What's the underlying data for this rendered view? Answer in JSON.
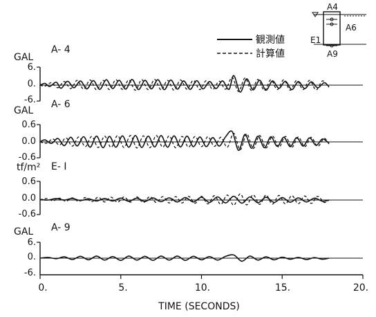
{
  "chart_data": {
    "type": "line",
    "xlabel": "TIME (SECONDS)",
    "xlim": [
      0,
      20
    ],
    "x_ticks": [
      "0.",
      "5.",
      "10.",
      "15.",
      "20."
    ],
    "legend": {
      "placement": "top-right",
      "items": [
        {
          "label": "観測値",
          "style": "solid"
        },
        {
          "label": "計算値",
          "style": "dashed"
        }
      ]
    },
    "inset": {
      "labels": {
        "a4": "A4",
        "a6": "A6",
        "e1": "E1",
        "a9": "A9"
      }
    },
    "panels": [
      {
        "id": "A-4",
        "unit": "GAL",
        "title": "A- 4",
        "ylim": [
          -6,
          6
        ],
        "y_ticks": [
          "6.",
          "0.",
          "-6."
        ],
        "observed": [
          [
            0,
            0.0
          ],
          [
            0.3,
            0.6
          ],
          [
            0.6,
            -0.5
          ],
          [
            1.0,
            1.0
          ],
          [
            1.3,
            -1.2
          ],
          [
            1.7,
            1.3
          ],
          [
            2.1,
            -1.0
          ],
          [
            2.5,
            1.4
          ],
          [
            2.9,
            -1.4
          ],
          [
            3.3,
            1.5
          ],
          [
            3.7,
            -1.6
          ],
          [
            4.1,
            1.8
          ],
          [
            4.5,
            -1.3
          ],
          [
            4.9,
            1.6
          ],
          [
            5.3,
            -1.5
          ],
          [
            5.7,
            1.9
          ],
          [
            6.1,
            -1.7
          ],
          [
            6.5,
            1.6
          ],
          [
            6.9,
            -1.4
          ],
          [
            7.3,
            1.8
          ],
          [
            7.7,
            -1.7
          ],
          [
            8.1,
            1.7
          ],
          [
            8.5,
            -1.5
          ],
          [
            8.9,
            1.4
          ],
          [
            9.3,
            -1.6
          ],
          [
            9.7,
            1.5
          ],
          [
            10.1,
            -1.4
          ],
          [
            10.5,
            1.2
          ],
          [
            10.9,
            -1.3
          ],
          [
            11.3,
            1.4
          ],
          [
            11.7,
            -1.6
          ],
          [
            12.0,
            3.2
          ],
          [
            12.4,
            -2.6
          ],
          [
            12.8,
            2.1
          ],
          [
            13.2,
            -1.8
          ],
          [
            13.6,
            1.6
          ],
          [
            14.0,
            -1.9
          ],
          [
            14.4,
            1.4
          ],
          [
            14.8,
            -1.2
          ],
          [
            15.2,
            1.3
          ],
          [
            15.6,
            -1.7
          ],
          [
            16.0,
            1.2
          ],
          [
            16.4,
            -1.3
          ],
          [
            16.8,
            1.1
          ],
          [
            17.2,
            -1.0
          ],
          [
            17.6,
            0.8
          ],
          [
            17.9,
            -0.6
          ]
        ],
        "computed": [
          [
            0,
            0.0
          ],
          [
            0.3,
            -0.4
          ],
          [
            0.7,
            0.8
          ],
          [
            1.1,
            -1.0
          ],
          [
            1.5,
            1.2
          ],
          [
            1.9,
            -1.3
          ],
          [
            2.3,
            1.6
          ],
          [
            2.7,
            -1.5
          ],
          [
            3.1,
            1.7
          ],
          [
            3.5,
            -1.8
          ],
          [
            3.9,
            1.6
          ],
          [
            4.3,
            -1.7
          ],
          [
            4.7,
            1.8
          ],
          [
            5.1,
            -1.6
          ],
          [
            5.5,
            1.7
          ],
          [
            5.9,
            -1.9
          ],
          [
            6.3,
            1.8
          ],
          [
            6.7,
            -1.7
          ],
          [
            7.1,
            1.9
          ],
          [
            7.5,
            -1.8
          ],
          [
            7.9,
            1.6
          ],
          [
            8.3,
            -1.9
          ],
          [
            8.7,
            1.7
          ],
          [
            9.1,
            -1.5
          ],
          [
            9.5,
            1.6
          ],
          [
            9.9,
            -1.7
          ],
          [
            10.3,
            1.5
          ],
          [
            10.7,
            -1.6
          ],
          [
            11.1,
            1.3
          ],
          [
            11.5,
            -1.5
          ],
          [
            11.9,
            2.6
          ],
          [
            12.3,
            -2.4
          ],
          [
            12.7,
            2.4
          ],
          [
            13.1,
            -2.0
          ],
          [
            13.5,
            1.9
          ],
          [
            13.9,
            -2.0
          ],
          [
            14.3,
            1.8
          ],
          [
            14.7,
            -1.7
          ],
          [
            15.1,
            1.8
          ],
          [
            15.5,
            -1.9
          ],
          [
            15.9,
            1.6
          ],
          [
            16.3,
            -1.7
          ],
          [
            16.7,
            1.6
          ],
          [
            17.1,
            -1.8
          ],
          [
            17.5,
            1.4
          ],
          [
            17.9,
            -0.8
          ]
        ]
      },
      {
        "id": "A-6",
        "unit": "GAL",
        "title": "A- 6",
        "ylim": [
          -0.6,
          0.6
        ],
        "y_ticks": [
          "0.6",
          "0.0",
          "-0.6"
        ],
        "observed": [
          [
            0,
            0.0
          ],
          [
            0.3,
            0.07
          ],
          [
            0.7,
            -0.06
          ],
          [
            1.1,
            0.12
          ],
          [
            1.5,
            -0.14
          ],
          [
            1.9,
            0.16
          ],
          [
            2.3,
            -0.15
          ],
          [
            2.7,
            0.18
          ],
          [
            3.1,
            -0.2
          ],
          [
            3.5,
            0.2
          ],
          [
            3.9,
            -0.22
          ],
          [
            4.3,
            0.19
          ],
          [
            4.7,
            -0.2
          ],
          [
            5.1,
            0.21
          ],
          [
            5.5,
            -0.2
          ],
          [
            5.9,
            0.22
          ],
          [
            6.3,
            -0.21
          ],
          [
            6.7,
            0.2
          ],
          [
            7.1,
            -0.19
          ],
          [
            7.5,
            0.22
          ],
          [
            7.9,
            -0.2
          ],
          [
            8.3,
            0.21
          ],
          [
            8.7,
            -0.19
          ],
          [
            9.1,
            0.2
          ],
          [
            9.5,
            -0.18
          ],
          [
            9.9,
            0.17
          ],
          [
            10.3,
            -0.18
          ],
          [
            10.7,
            0.15
          ],
          [
            11.1,
            -0.16
          ],
          [
            11.5,
            0.18
          ],
          [
            11.9,
            0.36
          ],
          [
            12.3,
            -0.32
          ],
          [
            12.7,
            0.26
          ],
          [
            13.1,
            -0.24
          ],
          [
            13.5,
            0.2
          ],
          [
            13.9,
            -0.22
          ],
          [
            14.3,
            0.18
          ],
          [
            14.7,
            -0.17
          ],
          [
            15.1,
            0.16
          ],
          [
            15.5,
            -0.18
          ],
          [
            15.9,
            0.15
          ],
          [
            16.3,
            -0.16
          ],
          [
            16.7,
            0.14
          ],
          [
            17.1,
            -0.13
          ],
          [
            17.5,
            0.1
          ],
          [
            17.9,
            -0.05
          ]
        ],
        "computed": [
          [
            0,
            0.0
          ],
          [
            0.4,
            -0.05
          ],
          [
            0.8,
            0.1
          ],
          [
            1.2,
            -0.12
          ],
          [
            1.6,
            0.14
          ],
          [
            2.0,
            -0.16
          ],
          [
            2.4,
            0.17
          ],
          [
            2.8,
            -0.18
          ],
          [
            3.2,
            0.19
          ],
          [
            3.6,
            -0.21
          ],
          [
            4.0,
            0.2
          ],
          [
            4.4,
            -0.21
          ],
          [
            4.8,
            0.22
          ],
          [
            5.2,
            -0.21
          ],
          [
            5.6,
            0.22
          ],
          [
            6.0,
            -0.23
          ],
          [
            6.4,
            0.21
          ],
          [
            6.8,
            -0.22
          ],
          [
            7.2,
            0.22
          ],
          [
            7.6,
            -0.2
          ],
          [
            8.0,
            0.21
          ],
          [
            8.4,
            -0.22
          ],
          [
            8.8,
            0.19
          ],
          [
            9.2,
            -0.2
          ],
          [
            9.6,
            0.19
          ],
          [
            10.0,
            -0.18
          ],
          [
            10.4,
            0.18
          ],
          [
            10.8,
            -0.17
          ],
          [
            11.2,
            0.16
          ],
          [
            11.6,
            -0.2
          ],
          [
            12.0,
            0.3
          ],
          [
            12.4,
            -0.3
          ],
          [
            12.8,
            0.28
          ],
          [
            13.2,
            -0.25
          ],
          [
            13.6,
            0.22
          ],
          [
            14.0,
            -0.23
          ],
          [
            14.4,
            0.2
          ],
          [
            14.8,
            -0.2
          ],
          [
            15.2,
            0.19
          ],
          [
            15.6,
            -0.2
          ],
          [
            16.0,
            0.17
          ],
          [
            16.4,
            -0.18
          ],
          [
            16.8,
            0.16
          ],
          [
            17.2,
            -0.17
          ],
          [
            17.6,
            0.12
          ],
          [
            17.9,
            -0.08
          ]
        ]
      },
      {
        "id": "E-1",
        "unit": "tf/m²",
        "title": "E- I",
        "ylim": [
          -0.6,
          0.6
        ],
        "y_ticks": [
          "0.6",
          "0.0",
          "-0.6"
        ],
        "observed": [
          [
            0,
            0.02
          ],
          [
            0.5,
            0.0
          ],
          [
            1.0,
            0.05
          ],
          [
            1.5,
            0.0
          ],
          [
            2.0,
            0.05
          ],
          [
            2.5,
            -0.02
          ],
          [
            3.0,
            0.04
          ],
          [
            3.5,
            -0.04
          ],
          [
            4.0,
            0.05
          ],
          [
            4.5,
            -0.04
          ],
          [
            5.0,
            0.06
          ],
          [
            5.5,
            -0.05
          ],
          [
            6.0,
            0.06
          ],
          [
            6.5,
            -0.06
          ],
          [
            7.0,
            0.07
          ],
          [
            7.5,
            -0.07
          ],
          [
            8.0,
            0.07
          ],
          [
            8.5,
            -0.08
          ],
          [
            9.0,
            0.08
          ],
          [
            9.5,
            -0.08
          ],
          [
            10.0,
            0.09
          ],
          [
            10.5,
            -0.1
          ],
          [
            11.0,
            0.1
          ],
          [
            11.5,
            -0.12
          ],
          [
            12.0,
            0.12
          ],
          [
            12.5,
            -0.13
          ],
          [
            13.0,
            0.1
          ],
          [
            13.5,
            -0.11
          ],
          [
            14.0,
            0.09
          ],
          [
            14.5,
            -0.1
          ],
          [
            15.0,
            0.08
          ],
          [
            15.5,
            -0.09
          ],
          [
            16.0,
            0.07
          ],
          [
            16.5,
            -0.08
          ],
          [
            17.0,
            0.06
          ],
          [
            17.5,
            -0.05
          ],
          [
            17.9,
            0.0
          ]
        ],
        "computed": [
          [
            0,
            0.0
          ],
          [
            0.4,
            0.05
          ],
          [
            0.8,
            -0.03
          ],
          [
            1.2,
            0.06
          ],
          [
            1.6,
            -0.05
          ],
          [
            2.0,
            0.07
          ],
          [
            2.4,
            -0.06
          ],
          [
            2.8,
            0.08
          ],
          [
            3.2,
            -0.07
          ],
          [
            3.6,
            0.09
          ],
          [
            4.0,
            -0.08
          ],
          [
            4.4,
            0.09
          ],
          [
            4.8,
            -0.09
          ],
          [
            5.2,
            0.1
          ],
          [
            5.6,
            -0.09
          ],
          [
            6.0,
            0.1
          ],
          [
            6.4,
            -0.1
          ],
          [
            6.8,
            0.11
          ],
          [
            7.2,
            -0.1
          ],
          [
            7.6,
            0.11
          ],
          [
            8.0,
            -0.12
          ],
          [
            8.4,
            0.11
          ],
          [
            8.8,
            -0.12
          ],
          [
            9.2,
            0.12
          ],
          [
            9.6,
            -0.13
          ],
          [
            10.0,
            0.12
          ],
          [
            10.4,
            -0.16
          ],
          [
            10.8,
            0.14
          ],
          [
            11.2,
            -0.18
          ],
          [
            11.6,
            0.16
          ],
          [
            12.0,
            -0.22
          ],
          [
            12.4,
            0.2
          ],
          [
            12.8,
            -0.2
          ],
          [
            13.2,
            0.17
          ],
          [
            13.6,
            -0.18
          ],
          [
            14.0,
            0.16
          ],
          [
            14.4,
            -0.17
          ],
          [
            14.8,
            0.15
          ],
          [
            15.2,
            -0.16
          ],
          [
            15.6,
            0.14
          ],
          [
            16.0,
            -0.15
          ],
          [
            16.4,
            0.13
          ],
          [
            16.8,
            -0.14
          ],
          [
            17.2,
            0.12
          ],
          [
            17.6,
            -0.1
          ],
          [
            17.9,
            0.0
          ]
        ]
      },
      {
        "id": "A-9",
        "unit": "GAL",
        "title": "A- 9",
        "ylim": [
          -6,
          6
        ],
        "y_ticks": [
          "6.",
          "0.",
          "-6."
        ],
        "observed": [
          [
            0,
            0.0
          ],
          [
            0.5,
            0.3
          ],
          [
            1.0,
            -0.2
          ],
          [
            1.5,
            0.5
          ],
          [
            2.0,
            -0.5
          ],
          [
            2.5,
            0.7
          ],
          [
            3.0,
            -0.6
          ],
          [
            3.5,
            0.8
          ],
          [
            4.0,
            -0.7
          ],
          [
            4.5,
            0.6
          ],
          [
            5.0,
            -0.8
          ],
          [
            5.5,
            0.8
          ],
          [
            6.0,
            -0.7
          ],
          [
            6.5,
            0.7
          ],
          [
            7.0,
            -0.8
          ],
          [
            7.5,
            0.8
          ],
          [
            8.0,
            -0.7
          ],
          [
            8.5,
            0.8
          ],
          [
            9.0,
            -0.8
          ],
          [
            9.5,
            0.7
          ],
          [
            10.0,
            -0.6
          ],
          [
            10.5,
            0.6
          ],
          [
            11.0,
            -0.7
          ],
          [
            11.5,
            0.7
          ],
          [
            12.0,
            1.2
          ],
          [
            12.5,
            -1.1
          ],
          [
            13.0,
            0.8
          ],
          [
            13.5,
            -0.7
          ],
          [
            14.0,
            0.5
          ],
          [
            14.5,
            -0.6
          ],
          [
            15.0,
            0.4
          ],
          [
            15.5,
            -0.4
          ],
          [
            16.0,
            0.3
          ],
          [
            16.5,
            -0.5
          ],
          [
            17.0,
            0.2
          ],
          [
            17.5,
            -0.4
          ],
          [
            17.9,
            0.0
          ]
        ]
      }
    ]
  }
}
